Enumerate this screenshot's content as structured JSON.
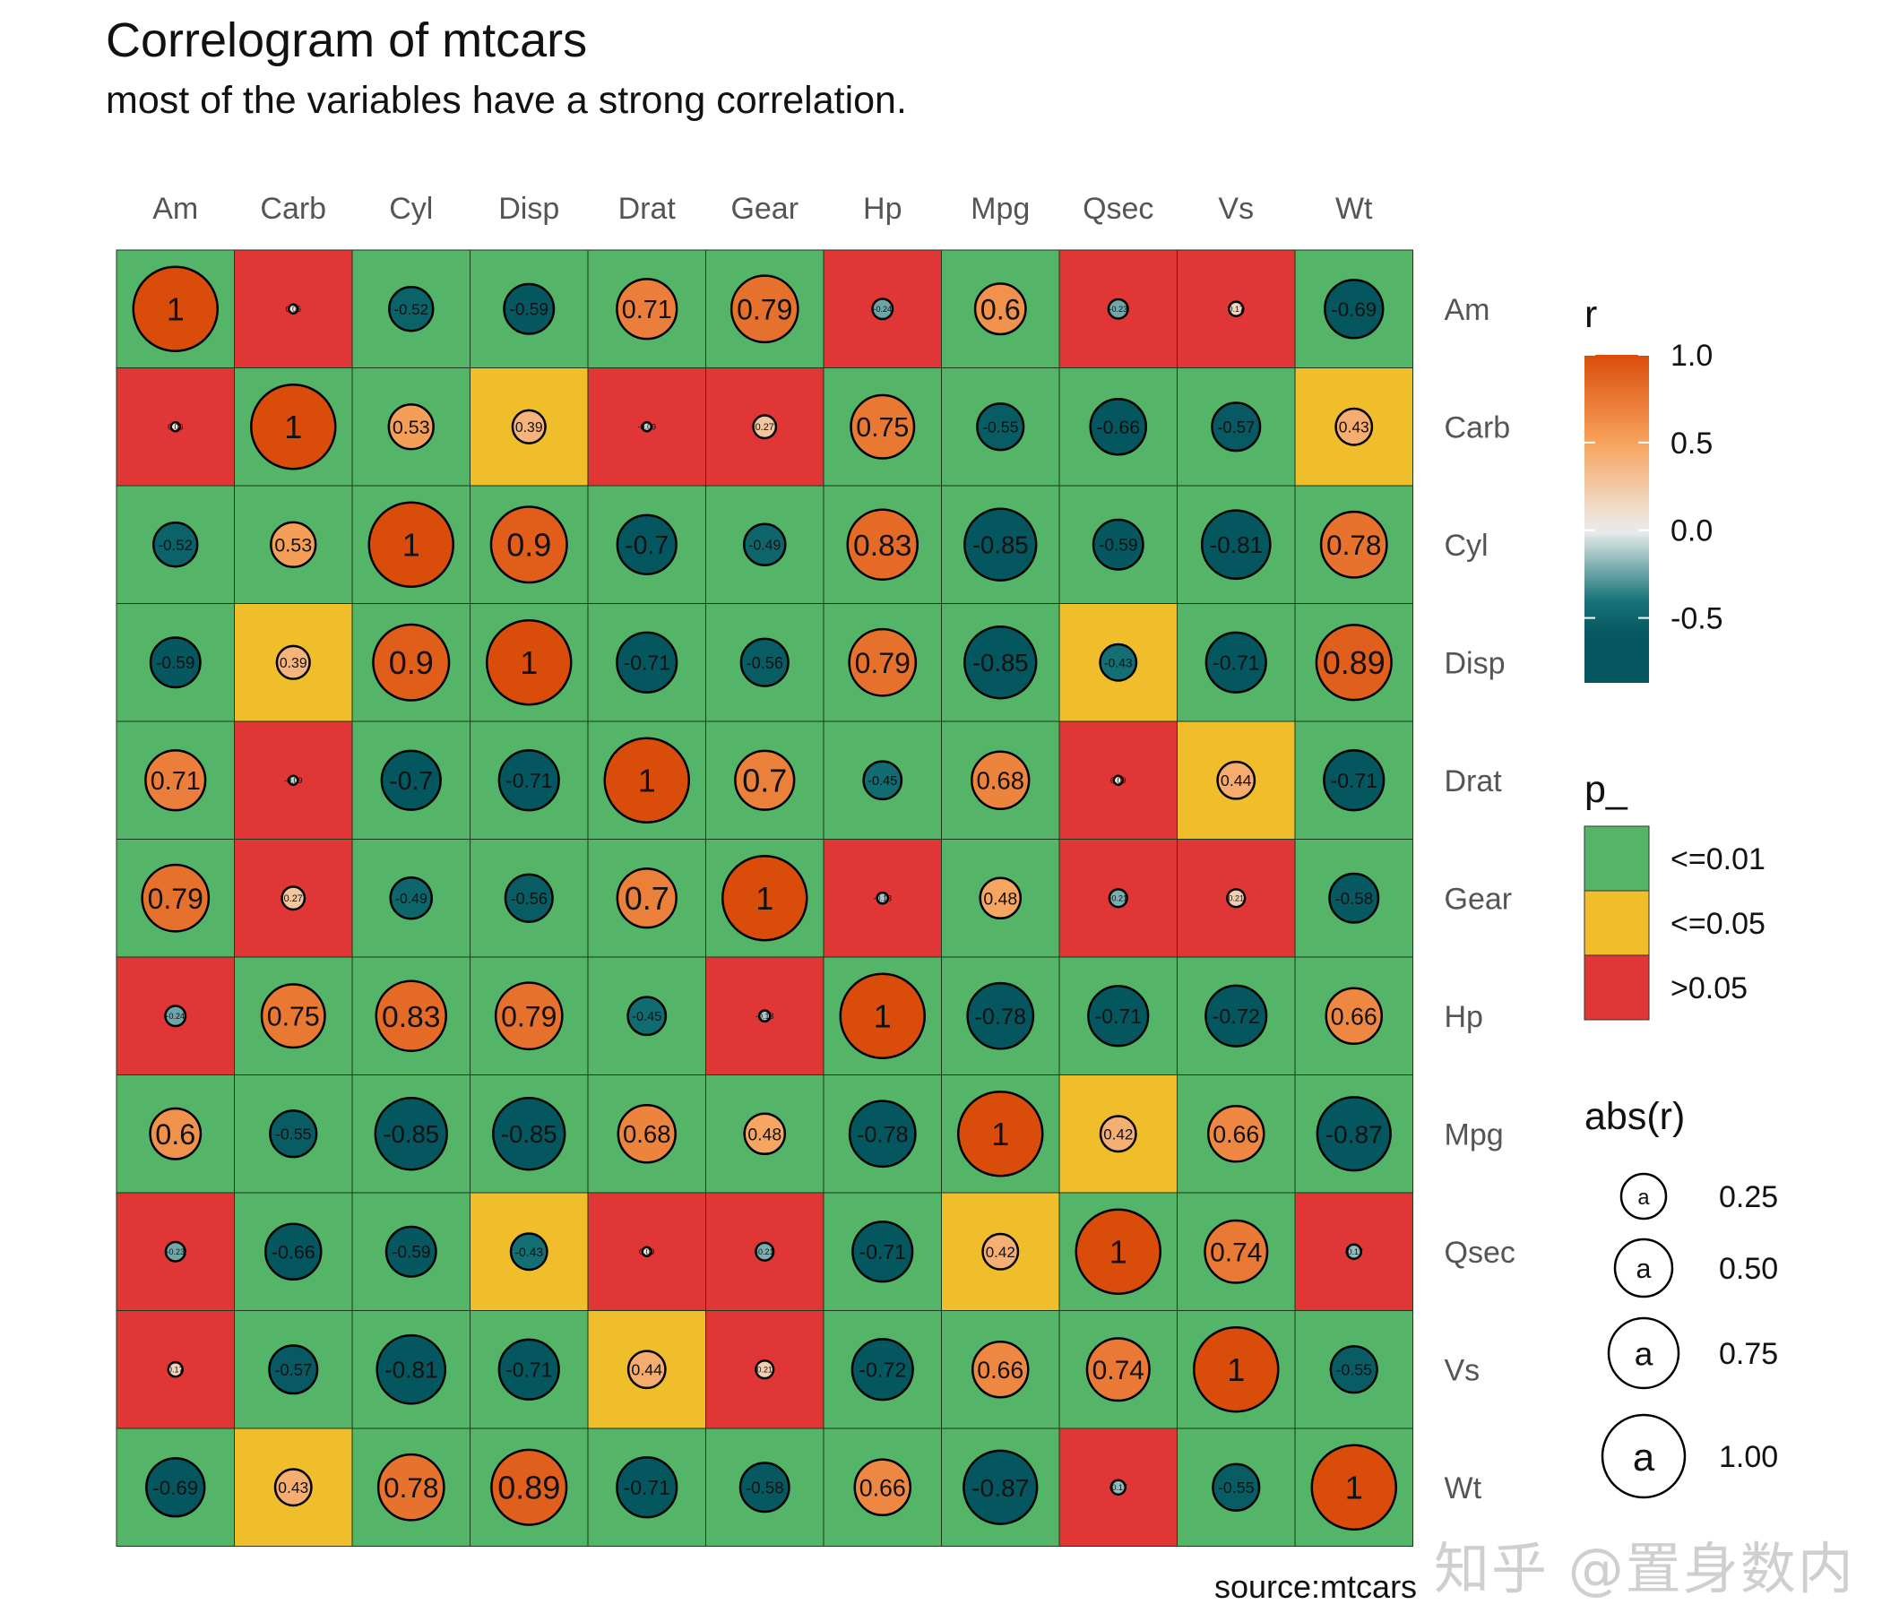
{
  "title": "Correlogram of mtcars",
  "subtitle": "most of the variables have a strong correlation.",
  "caption": "source:mtcars",
  "watermark": "知乎 @置身数内",
  "colors": {
    "p_green": "#54b467",
    "p_yellow": "#f0be2a",
    "p_red": "#e03636",
    "r_low": "#04565f",
    "r_lowmid": "#167377",
    "r_mid": "#eeeeee",
    "r_highmid": "#f7a35c",
    "r_high": "#da4c0a"
  },
  "chart_data": {
    "type": "heatmap",
    "title": "Correlogram of mtcars",
    "subtitle": "most of the variables have a strong correlation.",
    "caption": "source:mtcars",
    "variables": [
      "Am",
      "Carb",
      "Cyl",
      "Disp",
      "Drat",
      "Gear",
      "Hp",
      "Mpg",
      "Qsec",
      "Vs",
      "Wt"
    ],
    "r": [
      [
        1,
        0.06,
        -0.52,
        -0.59,
        0.71,
        0.79,
        -0.24,
        0.6,
        -0.23,
        0.17,
        -0.69
      ],
      [
        0.06,
        1,
        0.53,
        0.39,
        -0.09,
        0.27,
        0.75,
        -0.55,
        -0.66,
        -0.57,
        0.43
      ],
      [
        -0.52,
        0.53,
        1,
        0.9,
        -0.7,
        -0.49,
        0.83,
        -0.85,
        -0.59,
        -0.81,
        0.78
      ],
      [
        -0.59,
        0.39,
        0.9,
        1,
        -0.71,
        -0.56,
        0.79,
        -0.85,
        -0.43,
        -0.71,
        0.89
      ],
      [
        0.71,
        -0.09,
        -0.7,
        -0.71,
        1,
        0.7,
        -0.45,
        0.68,
        0.09,
        0.44,
        -0.71
      ],
      [
        0.79,
        0.27,
        -0.49,
        -0.56,
        0.7,
        1,
        -0.13,
        0.48,
        -0.21,
        0.21,
        -0.58
      ],
      [
        -0.24,
        0.75,
        0.83,
        0.79,
        -0.45,
        -0.13,
        1,
        -0.78,
        -0.71,
        -0.72,
        0.66
      ],
      [
        0.6,
        -0.55,
        -0.85,
        -0.85,
        0.68,
        0.48,
        -0.78,
        1,
        0.42,
        0.66,
        -0.87
      ],
      [
        -0.23,
        -0.66,
        -0.59,
        -0.43,
        0.09,
        -0.21,
        -0.71,
        0.42,
        1,
        0.74,
        -0.17
      ],
      [
        0.17,
        -0.57,
        -0.81,
        -0.71,
        0.44,
        0.21,
        -0.72,
        0.66,
        0.74,
        1,
        -0.55
      ],
      [
        -0.69,
        0.43,
        0.78,
        0.89,
        -0.71,
        -0.58,
        0.66,
        -0.87,
        -0.17,
        -0.55,
        1
      ]
    ],
    "labels": [
      [
        "1",
        "0.06",
        "-0.52",
        "-0.59",
        "0.71",
        "0.79",
        "-0.24",
        "0.6",
        "-0.23",
        "0.17",
        "-0.69"
      ],
      [
        "0.06",
        "1",
        "0.53",
        "0.39",
        "-0.09",
        "0.27",
        "0.75",
        "-0.55",
        "-0.66",
        "-0.57",
        "0.43"
      ],
      [
        "-0.52",
        "0.53",
        "1",
        "0.9",
        "-0.7",
        "-0.49",
        "0.83",
        "-0.85",
        "-0.59",
        "-0.81",
        "0.78"
      ],
      [
        "-0.59",
        "0.39",
        "0.9",
        "1",
        "-0.71",
        "-0.56",
        "0.79",
        "-0.85",
        "-0.43",
        "-0.71",
        "0.89"
      ],
      [
        "0.71",
        "-0.09",
        "-0.7",
        "-0.71",
        "1",
        "0.7",
        "-0.45",
        "0.68",
        "0.09",
        "0.44",
        "-0.71"
      ],
      [
        "0.79",
        "0.27",
        "-0.49",
        "-0.56",
        "0.7",
        "1",
        "-0.13",
        "0.48",
        "-0.21",
        "0.21",
        "-0.58"
      ],
      [
        "-0.24",
        "0.75",
        "0.83",
        "0.79",
        "-0.45",
        "-0.13",
        "1",
        "-0.78",
        "-0.71",
        "-0.72",
        "0.66"
      ],
      [
        "0.6",
        "-0.55",
        "-0.85",
        "-0.85",
        "0.68",
        "0.48",
        "-0.78",
        "1",
        "0.42",
        "0.66",
        "-0.87"
      ],
      [
        "-0.23",
        "-0.66",
        "-0.59",
        "-0.43",
        "0.09",
        "-0.21",
        "-0.71",
        "0.42",
        "1",
        "0.74",
        "-0.17"
      ],
      [
        "0.17",
        "-0.57",
        "-0.81",
        "-0.71",
        "0.44",
        "0.21",
        "-0.72",
        "0.66",
        "0.74",
        "1",
        "-0.55"
      ],
      [
        "-0.69",
        "0.43",
        "0.78",
        "0.89",
        "-0.71",
        "-0.58",
        "0.66",
        "-0.87",
        "-0.17",
        "-0.55",
        "1"
      ]
    ],
    "p_category": [
      [
        0,
        2,
        0,
        0,
        0,
        0,
        2,
        0,
        2,
        2,
        0
      ],
      [
        2,
        0,
        0,
        1,
        2,
        2,
        0,
        0,
        0,
        0,
        1
      ],
      [
        0,
        0,
        0,
        0,
        0,
        0,
        0,
        0,
        0,
        0,
        0
      ],
      [
        0,
        1,
        0,
        0,
        0,
        0,
        0,
        0,
        1,
        0,
        0
      ],
      [
        0,
        2,
        0,
        0,
        0,
        0,
        0,
        0,
        2,
        1,
        0
      ],
      [
        0,
        2,
        0,
        0,
        0,
        0,
        2,
        0,
        2,
        2,
        0
      ],
      [
        2,
        0,
        0,
        0,
        0,
        2,
        0,
        0,
        0,
        0,
        0
      ],
      [
        0,
        0,
        0,
        0,
        0,
        0,
        0,
        0,
        1,
        0,
        0
      ],
      [
        2,
        0,
        0,
        1,
        2,
        2,
        0,
        1,
        0,
        0,
        2
      ],
      [
        2,
        0,
        0,
        0,
        1,
        2,
        0,
        0,
        0,
        0,
        0
      ],
      [
        0,
        1,
        0,
        0,
        0,
        0,
        0,
        0,
        2,
        0,
        0
      ]
    ],
    "legend_r": {
      "title": "r",
      "range": [
        -0.87,
        1.0
      ],
      "ticks": [
        1.0,
        0.5,
        0.0,
        -0.5
      ],
      "tick_labels": [
        "1.0",
        "0.5",
        "0.0",
        "-0.5"
      ]
    },
    "legend_p": {
      "title": "p_",
      "items": [
        "<=0.01",
        "<=0.05",
        ">0.05"
      ]
    },
    "legend_size": {
      "title": "abs(r)",
      "glyph": "a",
      "values": [
        0.25,
        0.5,
        0.75,
        1.0
      ],
      "labels": [
        "0.25",
        "0.50",
        "0.75",
        "1.00"
      ]
    }
  }
}
